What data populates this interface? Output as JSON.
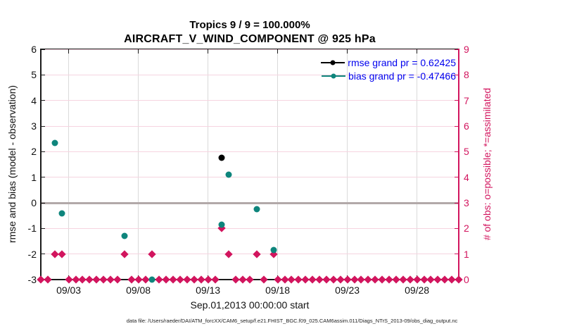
{
  "header": {
    "title_line1": "Tropics 9 / 9 = 100.000%",
    "title_line2": "AIRCRAFT_V_WIND_COMPONENT @ 925 hPa"
  },
  "legend": {
    "items": [
      {
        "name": "rmse",
        "label": "rmse grand pr = 0.62425",
        "marker_color": "#000000"
      },
      {
        "name": "bias",
        "label": "bias grand pr = -0.47466",
        "marker_color": "#0e857c"
      }
    ],
    "text_color": "#0000ee"
  },
  "footer": {
    "text": "data file: /Users/raeder/DAI/ATM_forcXX/CAM6_setup/f.e21.FHIST_BGC.f09_025.CAM6assim.011/Diags_NTrS_2013-09/obs_diag_output.nc"
  },
  "colors": {
    "obs_pink": "#d2155e",
    "bias_teal": "#0e857c",
    "rmse_black": "#000000",
    "grid_pink": "#f6d4e0",
    "grid_gray": "#dadada",
    "zero_line_gray": "#b2a9a9",
    "axis_black": "#1a1a1a",
    "legend_blue": "#0000ee"
  },
  "chart_data": {
    "type": "scatter",
    "title": "Tropics 9 / 9 = 100.000%",
    "subtitle": "AIRCRAFT_V_WIND_COMPONENT @ 925 hPa",
    "xlabel": "Sep.01,2013 00:00:00 start",
    "ylabel_left": "rmse and bias (model - observation)",
    "ylabel_right": "# of obs: o=possible; *=assimilated",
    "x_range_days": [
      0,
      30
    ],
    "x_ticks": [
      {
        "day": 2,
        "label": "09/03"
      },
      {
        "day": 7,
        "label": "09/08"
      },
      {
        "day": 12,
        "label": "09/13"
      },
      {
        "day": 17,
        "label": "09/18"
      },
      {
        "day": 22,
        "label": "09/23"
      },
      {
        "day": 27,
        "label": "09/28"
      }
    ],
    "ylim_left": [
      -3,
      6
    ],
    "y_ticks_left": [
      -3,
      -2,
      -1,
      0,
      1,
      2,
      3,
      4,
      5,
      6
    ],
    "ylim_right": [
      0,
      9
    ],
    "y_ticks_right": [
      0,
      1,
      2,
      3,
      4,
      5,
      6,
      7,
      8,
      9
    ],
    "grid": true,
    "legend_position": "top-right",
    "series": [
      {
        "name": "obs-count-zero",
        "axis": "right",
        "marker": "diamond",
        "color": "#d2155e",
        "value": 0,
        "days": [
          0,
          0.5,
          2,
          2.5,
          3,
          3.5,
          4,
          4.5,
          5,
          5.5,
          6.5,
          7,
          7.5,
          8.5,
          9,
          9.5,
          10,
          10.5,
          11,
          11.5,
          12,
          12.5,
          14,
          14.5,
          15,
          16,
          17,
          17.5,
          18,
          18.5,
          19,
          19.5,
          20,
          20.5,
          21,
          21.5,
          22,
          22.5,
          23,
          23.5,
          24,
          24.5,
          25,
          25.5,
          26,
          26.5,
          27,
          27.5,
          28,
          28.5,
          29,
          29.5,
          30
        ]
      },
      {
        "name": "obs-count",
        "axis": "right",
        "marker": "diamond",
        "color": "#d2155e",
        "points": [
          {
            "day": 1.0,
            "value": 1
          },
          {
            "day": 1.5,
            "value": 1
          },
          {
            "day": 6.0,
            "value": 1
          },
          {
            "day": 8.0,
            "value": 1
          },
          {
            "day": 13.0,
            "value": 2
          },
          {
            "day": 13.5,
            "value": 1
          },
          {
            "day": 15.5,
            "value": 1
          },
          {
            "day": 16.7,
            "value": 1
          }
        ]
      },
      {
        "name": "rmse",
        "axis": "left",
        "marker": "circle",
        "color": "#000000",
        "points": [
          {
            "day": 13.0,
            "value": 1.75
          }
        ]
      },
      {
        "name": "bias",
        "axis": "left",
        "marker": "circle",
        "color": "#0e857c",
        "points": [
          {
            "day": 1.0,
            "value": 2.35
          },
          {
            "day": 1.5,
            "value": -0.4
          },
          {
            "day": 6.0,
            "value": -1.3
          },
          {
            "day": 8.0,
            "value": -3.0
          },
          {
            "day": 13.0,
            "value": -0.85
          },
          {
            "day": 13.5,
            "value": 1.1
          },
          {
            "day": 15.5,
            "value": -0.25
          },
          {
            "day": 16.7,
            "value": -1.85
          }
        ]
      }
    ]
  }
}
